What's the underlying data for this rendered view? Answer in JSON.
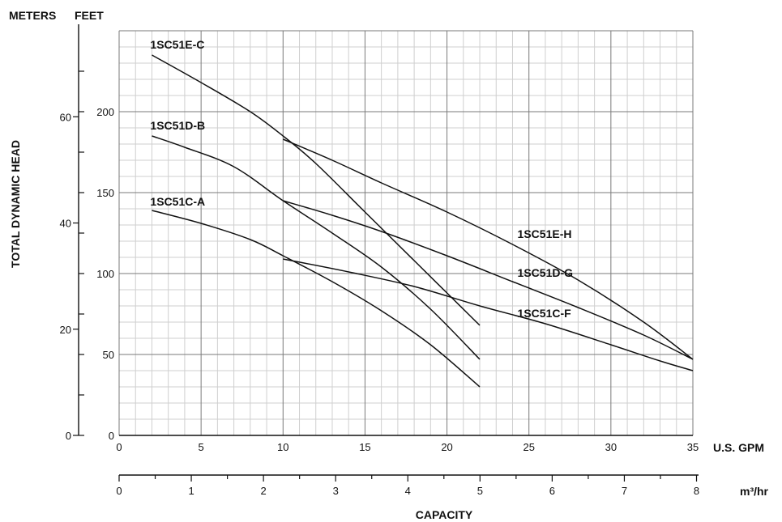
{
  "chart_data": {
    "type": "line",
    "title": "",
    "xlabel": "CAPACITY",
    "x_unit_primary": "U.S. GPM",
    "x_unit_secondary": "m³/hr",
    "ylabel": "TOTAL DYNAMIC HEAD",
    "y_unit_left": "METERS",
    "y_unit_right": "FEET",
    "xlim": [
      0,
      35
    ],
    "ylim_feet": [
      0,
      250
    ],
    "ylim_meters": [
      0,
      76.2
    ],
    "x_ticks_gpm": [
      0,
      5,
      10,
      15,
      20,
      25,
      30,
      35
    ],
    "x_tick_labels_gpm": [
      "0",
      "5",
      "10",
      "15",
      "20",
      "25",
      "30",
      "35"
    ],
    "x_ticks_m3hr": [
      0,
      1,
      2,
      3,
      4,
      5,
      6,
      7,
      8
    ],
    "x_tick_labels_m3hr": [
      "0",
      "1",
      "2",
      "3",
      "4",
      "5",
      "6",
      "7",
      "8"
    ],
    "y_ticks_feet": [
      0,
      50,
      100,
      150,
      200
    ],
    "y_tick_labels_feet": [
      "0",
      "50",
      "100",
      "150",
      "200"
    ],
    "y_ticks_meters": [
      0,
      20,
      40,
      60
    ],
    "y_tick_labels_meters": [
      "0",
      "20",
      "40",
      "60"
    ],
    "grid": true,
    "series": [
      {
        "name": "1SC51E-C",
        "x": [
          2,
          5,
          8,
          10,
          12,
          15,
          18,
          20,
          22
        ],
        "y": [
          235,
          218,
          200,
          185,
          168,
          138,
          108,
          88,
          68
        ]
      },
      {
        "name": "1SC51D-B",
        "x": [
          2,
          4,
          7,
          10,
          13,
          16,
          19,
          22
        ],
        "y": [
          185,
          178,
          166,
          145,
          125,
          104,
          78,
          47
        ]
      },
      {
        "name": "1SC51C-A",
        "x": [
          2,
          5,
          8,
          10,
          13,
          16,
          19,
          22
        ],
        "y": [
          139,
          131,
          121,
          111,
          95,
          77,
          56,
          30
        ]
      },
      {
        "name": "1SC51E-H",
        "x": [
          10,
          13,
          16,
          20,
          24,
          28,
          32,
          35
        ],
        "y": [
          183,
          170,
          156,
          138,
          118,
          96,
          70,
          47
        ]
      },
      {
        "name": "1SC51D-G",
        "x": [
          10,
          13,
          16,
          20,
          24,
          28,
          32,
          35
        ],
        "y": [
          145,
          136,
          126,
          111,
          95,
          79,
          62,
          47
        ]
      },
      {
        "name": "1SC51C-F",
        "x": [
          10,
          14,
          18,
          22,
          26,
          30,
          33,
          35
        ],
        "y": [
          109,
          101,
          92,
          80,
          69,
          56,
          46,
          40
        ]
      }
    ]
  }
}
